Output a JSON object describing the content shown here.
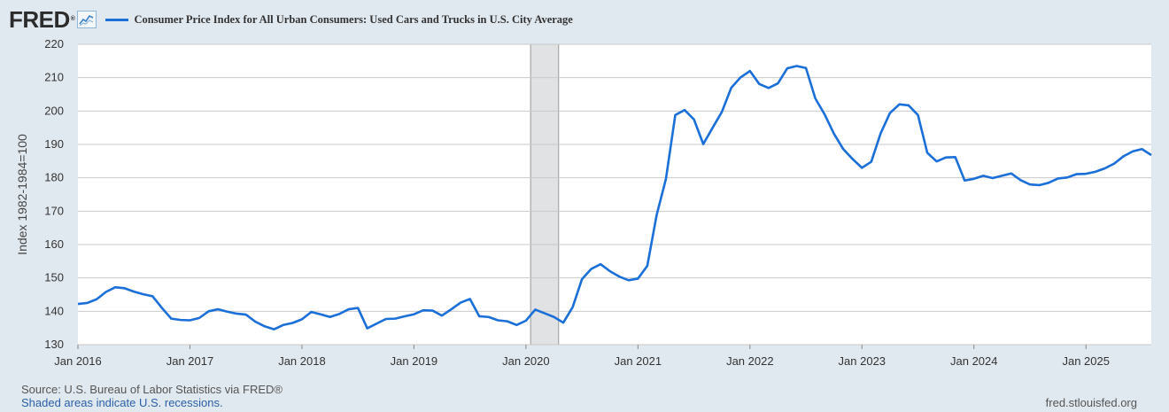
{
  "header": {
    "logo_text": "FRED",
    "logo_mark": "®",
    "graph_icon": "line-graph-icon",
    "legend_label": "Consumer Price Index for All Urban Consumers: Used Cars and Trucks in U.S. City Average"
  },
  "footer": {
    "source": "Source: U.S. Bureau of Labor Statistics via FRED®",
    "recession_note": "Shaded areas indicate U.S. recessions.",
    "site": "fred.stlouisfed.org"
  },
  "colors": {
    "line": "#1b6fd8",
    "background": "#e1e9f0",
    "plot_bg": "#ffffff",
    "grid": "#c9c9c9",
    "recession": "#e0e2e4"
  },
  "chart_data": {
    "type": "line",
    "title": "Consumer Price Index for All Urban Consumers: Used Cars and Trucks in U.S. City Average",
    "xlabel": "",
    "ylabel": "Index 1982-1984=100",
    "ylim": [
      130,
      220
    ],
    "yticks": [
      130,
      140,
      150,
      160,
      170,
      180,
      190,
      200,
      210,
      220
    ],
    "x_start": "2016-01",
    "x_end": "2025-09",
    "xticks": [
      {
        "label": "Jan 2016",
        "index": 0
      },
      {
        "label": "Jan 2017",
        "index": 12
      },
      {
        "label": "Jan 2018",
        "index": 24
      },
      {
        "label": "Jan 2019",
        "index": 36
      },
      {
        "label": "Jan 2020",
        "index": 48
      },
      {
        "label": "Jan 2021",
        "index": 60
      },
      {
        "label": "Jan 2022",
        "index": 72
      },
      {
        "label": "Jan 2023",
        "index": 84
      },
      {
        "label": "Jan 2024",
        "index": 96
      },
      {
        "label": "Jan 2025",
        "index": 108
      }
    ],
    "recessions": [
      {
        "start_index": 49,
        "end_index": 51
      }
    ],
    "grid": true,
    "legend": "top-left",
    "series": [
      {
        "name": "Consumer Price Index for All Urban Consumers: Used Cars and Trucks in U.S. City Average",
        "values": [
          142.2,
          142.5,
          143.6,
          145.8,
          147.2,
          146.9,
          145.9,
          145.1,
          144.5,
          141.0,
          137.8,
          137.4,
          137.3,
          138.0,
          140.0,
          140.6,
          139.9,
          139.3,
          139.0,
          136.9,
          135.5,
          134.6,
          135.9,
          136.5,
          137.6,
          139.8,
          139.1,
          138.3,
          139.2,
          140.6,
          141.0,
          134.9,
          136.3,
          137.7,
          137.8,
          138.5,
          139.1,
          140.3,
          140.2,
          138.7,
          140.6,
          142.6,
          143.7,
          138.5,
          138.3,
          137.3,
          137.0,
          135.9,
          137.2,
          140.5,
          139.4,
          138.3,
          136.6,
          141.2,
          149.6,
          152.7,
          154.1,
          152.0,
          150.4,
          149.3,
          149.8,
          153.6,
          168.8,
          179.7,
          198.8,
          200.3,
          197.5,
          190.1,
          195.0,
          199.8,
          207.0,
          210.1,
          212.0,
          208.1,
          206.9,
          208.3,
          212.8,
          213.5,
          212.9,
          203.8,
          199.0,
          193.2,
          188.6,
          185.6,
          183.0,
          184.8,
          193.3,
          199.4,
          202.0,
          201.7,
          198.8,
          187.5,
          184.9,
          186.1,
          186.2,
          179.2,
          179.7,
          180.6,
          179.9,
          180.6,
          181.3,
          179.3,
          178.0,
          177.8,
          178.5,
          179.8,
          180.1,
          181.1,
          181.2,
          181.8,
          182.8,
          184.2,
          186.4,
          187.9,
          188.6,
          186.8
        ]
      }
    ]
  }
}
